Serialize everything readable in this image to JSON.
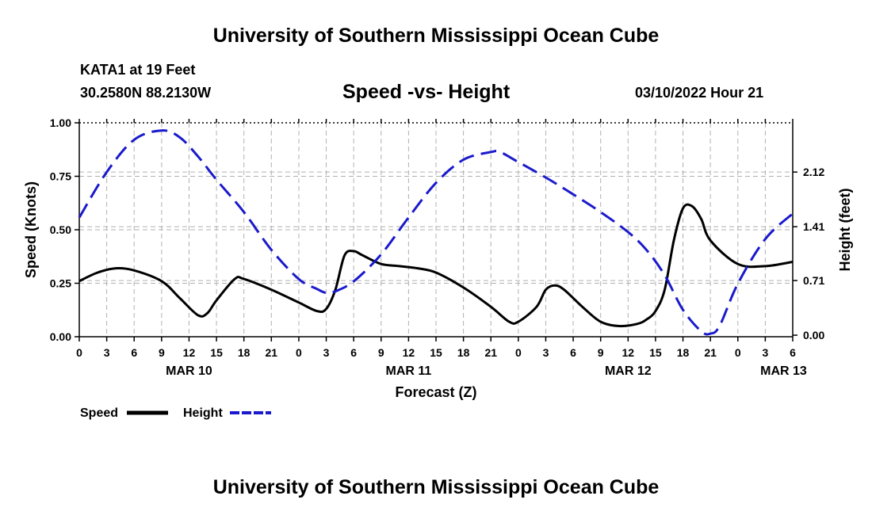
{
  "page": {
    "title_top": "University of Southern Mississippi Ocean Cube",
    "title_bottom": "University of Southern Mississippi Ocean Cube",
    "station": "KATA1 at 19 Feet",
    "coords": "30.2580N  88.2130W",
    "subtitle": "Speed -vs- Height",
    "issued": "03/10/2022 Hour 21"
  },
  "colors": {
    "speed": "#000000",
    "height": "#1a1acc",
    "grid": "#b0b0b0"
  },
  "chart_data": {
    "type": "line",
    "title": "Speed -vs- Height",
    "xlabel": "Forecast (Z)",
    "ylabel": "Speed (Knots)",
    "y2label": "Height (feet)",
    "x_range": [
      0,
      78
    ],
    "ylim": [
      0,
      1.0
    ],
    "y2lim": [
      -0.02,
      2.76
    ],
    "y_ticks": [
      "0.00",
      "0.25",
      "0.50",
      "0.75",
      "1.00"
    ],
    "y2_ticks": [
      {
        "value": 0.0,
        "label": "0.00"
      },
      {
        "value": 0.71,
        "label": "0.71"
      },
      {
        "value": 1.41,
        "label": "1.41"
      },
      {
        "value": 2.12,
        "label": "2.12"
      }
    ],
    "x_ticks": [
      {
        "x": 0,
        "label": "0"
      },
      {
        "x": 3,
        "label": "3"
      },
      {
        "x": 6,
        "label": "6"
      },
      {
        "x": 9,
        "label": "9"
      },
      {
        "x": 12,
        "label": "12"
      },
      {
        "x": 15,
        "label": "15"
      },
      {
        "x": 18,
        "label": "18"
      },
      {
        "x": 21,
        "label": "21"
      },
      {
        "x": 24,
        "label": "0"
      },
      {
        "x": 27,
        "label": "3"
      },
      {
        "x": 30,
        "label": "6"
      },
      {
        "x": 33,
        "label": "9"
      },
      {
        "x": 36,
        "label": "12"
      },
      {
        "x": 39,
        "label": "15"
      },
      {
        "x": 42,
        "label": "18"
      },
      {
        "x": 45,
        "label": "21"
      },
      {
        "x": 48,
        "label": "0"
      },
      {
        "x": 51,
        "label": "3"
      },
      {
        "x": 54,
        "label": "6"
      },
      {
        "x": 57,
        "label": "9"
      },
      {
        "x": 60,
        "label": "12"
      },
      {
        "x": 63,
        "label": "15"
      },
      {
        "x": 66,
        "label": "18"
      },
      {
        "x": 69,
        "label": "21"
      },
      {
        "x": 72,
        "label": "0"
      },
      {
        "x": 75,
        "label": "3"
      },
      {
        "x": 78,
        "label": "6"
      }
    ],
    "date_labels": [
      {
        "x": 12,
        "label": "MAR 10"
      },
      {
        "x": 36,
        "label": "MAR 11"
      },
      {
        "x": 60,
        "label": "MAR 12"
      },
      {
        "x": 77,
        "label": "MAR 13"
      }
    ],
    "legend": [
      {
        "name": "Speed",
        "style": "solid"
      },
      {
        "name": "Height",
        "style": "dashed"
      }
    ],
    "series": [
      {
        "name": "Speed",
        "axis": "left",
        "x": [
          0,
          2,
          4,
          6,
          9,
          11,
          13,
          14,
          15,
          17,
          18,
          21,
          24,
          26,
          27,
          28,
          29,
          30,
          31,
          33,
          35,
          37,
          39,
          42,
          45,
          47,
          48,
          50,
          51,
          52,
          53,
          55,
          57,
          59,
          61,
          62,
          63,
          64,
          65,
          66,
          67,
          68,
          69,
          72,
          75,
          78
        ],
        "values": [
          0.26,
          0.3,
          0.32,
          0.31,
          0.26,
          0.18,
          0.1,
          0.11,
          0.17,
          0.27,
          0.27,
          0.22,
          0.16,
          0.12,
          0.13,
          0.22,
          0.38,
          0.4,
          0.38,
          0.34,
          0.33,
          0.32,
          0.3,
          0.23,
          0.14,
          0.07,
          0.07,
          0.14,
          0.22,
          0.24,
          0.22,
          0.14,
          0.07,
          0.05,
          0.06,
          0.08,
          0.12,
          0.22,
          0.45,
          0.6,
          0.61,
          0.55,
          0.45,
          0.34,
          0.33,
          0.35
        ]
      },
      {
        "name": "Height",
        "axis": "right",
        "x": [
          0,
          3,
          6,
          9,
          11,
          13,
          15,
          18,
          21,
          24,
          26,
          27,
          28,
          30,
          33,
          36,
          39,
          42,
          45,
          46,
          48,
          51,
          54,
          57,
          60,
          62,
          64,
          66,
          68,
          69,
          70,
          72,
          75,
          78
        ],
        "values": [
          1.53,
          2.12,
          2.54,
          2.66,
          2.57,
          2.32,
          2.02,
          1.6,
          1.11,
          0.73,
          0.6,
          0.55,
          0.57,
          0.7,
          1.05,
          1.53,
          1.98,
          2.28,
          2.38,
          2.38,
          2.25,
          2.05,
          1.83,
          1.6,
          1.34,
          1.11,
          0.78,
          0.33,
          0.05,
          0.02,
          0.12,
          0.67,
          1.25,
          1.58
        ]
      }
    ]
  }
}
